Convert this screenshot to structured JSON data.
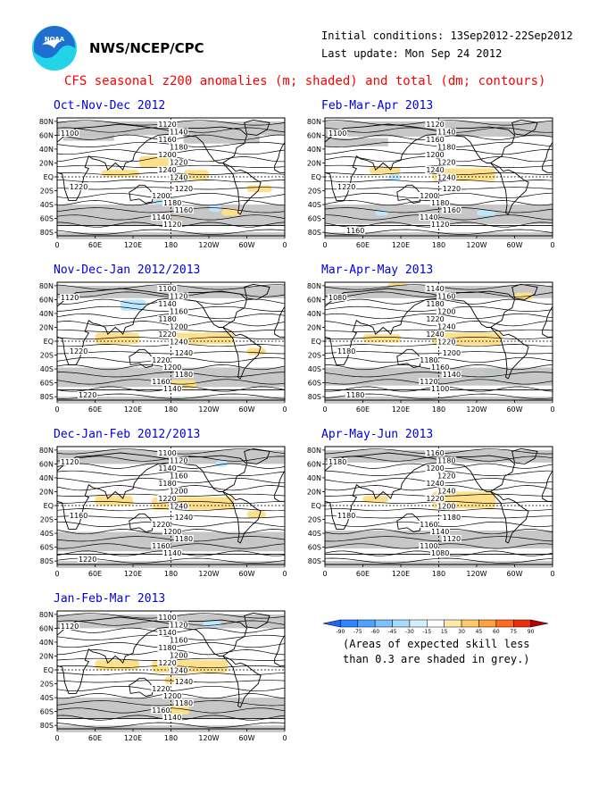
{
  "header": {
    "agency": "NWS/NCEP/CPC",
    "initial_conditions": "Initial conditions: 13Sep2012-22Sep2012",
    "last_update": "Last update: Mon Sep 24 2012",
    "title": "CFS seasonal z200 anomalies (m; shaded) and total (dm; contours)"
  },
  "logo": {
    "icon": "noaa-logo",
    "colors": {
      "sky": "#1f6fd0",
      "wave": "#23d3e8",
      "bird": "#ffffff"
    }
  },
  "axes": {
    "lat_labels": [
      "80N",
      "60N",
      "40N",
      "20N",
      "EQ",
      "20S",
      "40S",
      "60S",
      "80S"
    ],
    "lon_labels": [
      "0",
      "60E",
      "120E",
      "180",
      "120W",
      "60W",
      "0"
    ]
  },
  "panels": [
    {
      "id": "p1",
      "title": "Oct-Nov-Dec 2012",
      "contour_labels": [
        "1120",
        "1140",
        "1160",
        "1180",
        "1200",
        "1220",
        "1240",
        "1240",
        "1220",
        "1200",
        "1180",
        "1160",
        "1140",
        "1120",
        "1100",
        "1220"
      ]
    },
    {
      "id": "p2",
      "title": "Feb-Mar-Apr 2013",
      "contour_labels": [
        "1120",
        "1140",
        "1160",
        "1180",
        "1200",
        "1220",
        "1240",
        "1240",
        "1220",
        "1200",
        "1180",
        "1160",
        "1140",
        "1120",
        "1100",
        "1220",
        "1160"
      ]
    },
    {
      "id": "p3",
      "title": "Nov-Dec-Jan 2012/2013",
      "contour_labels": [
        "1100",
        "1120",
        "1140",
        "1160",
        "1180",
        "1200",
        "1220",
        "1240",
        "1240",
        "1220",
        "1200",
        "1180",
        "1160",
        "1140",
        "1120",
        "1220",
        "1220"
      ]
    },
    {
      "id": "p4",
      "title": "Mar-Apr-May 2013",
      "contour_labels": [
        "1140",
        "1160",
        "1180",
        "1200",
        "1220",
        "1240",
        "1240",
        "1220",
        "1200",
        "1180",
        "1160",
        "1140",
        "1120",
        "1100",
        "1080",
        "1180",
        "1180"
      ]
    },
    {
      "id": "p5",
      "title": "Dec-Jan-Feb 2012/2013",
      "contour_labels": [
        "1100",
        "1120",
        "1140",
        "1160",
        "1180",
        "1200",
        "1220",
        "1240",
        "1240",
        "1220",
        "1200",
        "1180",
        "1160",
        "1140",
        "1120",
        "1160",
        "1220"
      ]
    },
    {
      "id": "p6",
      "title": "Apr-May-Jun 2013",
      "contour_labels": [
        "1160",
        "1180",
        "1200",
        "1220",
        "1240",
        "1240",
        "1220",
        "1200",
        "1180",
        "1160",
        "1140",
        "1120",
        "1100",
        "1080",
        "1180",
        "1180"
      ]
    },
    {
      "id": "p7",
      "title": "Jan-Feb-Mar 2013",
      "contour_labels": [
        "1100",
        "1120",
        "1140",
        "1160",
        "1180",
        "1200",
        "1220",
        "1240",
        "1240",
        "1220",
        "1200",
        "1180",
        "1160",
        "1140",
        "1120"
      ]
    }
  ],
  "colorbar": {
    "ticks": [
      "-90",
      "-75",
      "-60",
      "-45",
      "-30",
      "-15",
      "15",
      "30",
      "45",
      "60",
      "75",
      "90"
    ],
    "colors": [
      "#1a66ff",
      "#2f84ff",
      "#4da2ff",
      "#7cc0ff",
      "#a6dcff",
      "#d2f0ff",
      "#ffffff",
      "#ffe9a8",
      "#ffc86b",
      "#ffa03c",
      "#ff6a20",
      "#e83010",
      "#b80000"
    ]
  },
  "skill_note": {
    "line1": "(Areas of expected skill less",
    "line2": "than 0.3 are shaded in grey.)"
  },
  "colors": {
    "grey_shade": "#bdbdbd",
    "warm": "#ffe08a",
    "cool": "#bde6ff",
    "title_red": "#ff0000",
    "panel_title_blue": "#0000dd"
  }
}
